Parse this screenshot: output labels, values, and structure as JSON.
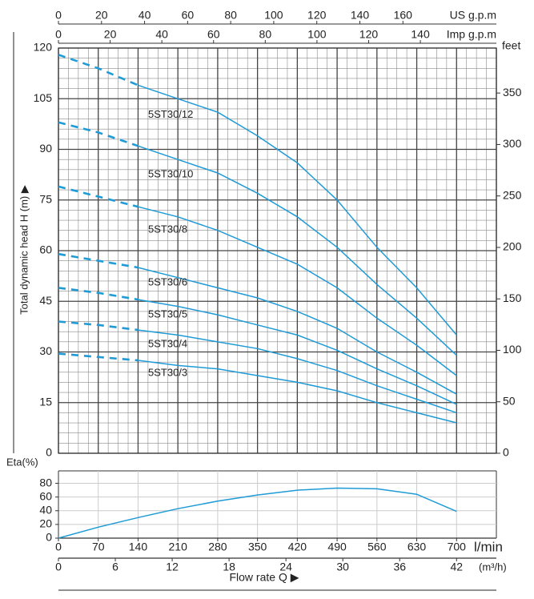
{
  "chart_data": [
    {
      "type": "line",
      "y_label": "Total dynamic head H (m) ▶",
      "x": [
        0,
        70,
        140,
        210,
        280,
        350,
        420,
        490,
        560,
        630,
        700
      ],
      "xlim": [
        0,
        770
      ],
      "ylim": [
        0,
        120
      ],
      "yticks": [
        0,
        15,
        30,
        45,
        60,
        75,
        90,
        105,
        120
      ],
      "y2_label": "feet",
      "y2lim": [
        0,
        393.7
      ],
      "y2ticks": [
        0,
        50,
        100,
        150,
        200,
        250,
        300,
        350
      ],
      "top_axes": [
        {
          "label": "US g.p.m",
          "lim": [
            0,
            203.4
          ],
          "ticks": [
            0,
            20,
            40,
            60,
            80,
            100,
            120,
            140,
            160
          ]
        },
        {
          "label": "Imp g.p.m",
          "lim": [
            0,
            169.4
          ],
          "ticks": [
            0,
            20,
            40,
            60,
            80,
            100,
            120,
            140
          ]
        }
      ],
      "dashed_below": 140,
      "grid": true,
      "series": [
        {
          "name": "5ST30/12",
          "color": "#1e9bd7",
          "values": [
            118,
            114,
            109,
            105,
            101,
            94,
            86,
            75,
            61,
            49,
            35
          ]
        },
        {
          "name": "5ST30/10",
          "color": "#1e9bd7",
          "values": [
            98,
            95,
            91,
            87,
            83,
            77,
            70,
            61,
            50,
            40,
            29
          ]
        },
        {
          "name": "5ST30/8",
          "color": "#1e9bd7",
          "values": [
            79,
            76,
            73,
            70,
            66,
            61,
            56,
            49,
            40,
            32,
            23
          ]
        },
        {
          "name": "5ST30/6",
          "color": "#1e9bd7",
          "values": [
            59,
            57,
            55,
            52,
            49,
            46,
            42,
            37,
            30,
            24,
            17.5
          ]
        },
        {
          "name": "5ST30/5",
          "color": "#1e9bd7",
          "values": [
            49,
            47.5,
            45.5,
            43.5,
            41,
            38,
            35,
            30.5,
            25,
            20,
            14.5
          ]
        },
        {
          "name": "5ST30/4",
          "color": "#1e9bd7",
          "values": [
            39,
            38,
            36.5,
            35,
            33,
            31,
            28,
            24.5,
            20,
            16,
            12
          ]
        },
        {
          "name": "5ST30/3",
          "color": "#1e9bd7",
          "values": [
            29.5,
            28.5,
            27.5,
            26,
            25,
            23,
            21,
            18.5,
            15,
            12,
            9
          ]
        }
      ]
    },
    {
      "type": "line",
      "y_label": "Eta(%)",
      "x": [
        0,
        70,
        140,
        210,
        280,
        350,
        420,
        490,
        560,
        630,
        700
      ],
      "values": [
        0,
        16,
        30,
        43,
        54,
        63,
        70,
        73,
        72,
        64,
        39
      ],
      "color": "#1e9bd7",
      "xlim": [
        0,
        770
      ],
      "ylim": [
        0,
        90
      ],
      "yticks": [
        0,
        20,
        40,
        60,
        80
      ],
      "grid": true,
      "x_axes": [
        {
          "label": "l/min",
          "lim": [
            0,
            770
          ],
          "ticks": [
            0,
            70,
            140,
            210,
            280,
            350,
            420,
            490,
            560,
            630,
            700
          ]
        },
        {
          "label": "(m³/h)",
          "lim": [
            0,
            46.2
          ],
          "ticks": [
            0,
            6,
            12,
            18,
            24,
            30,
            36,
            42
          ]
        }
      ],
      "x_label": "Flow rate Q ▶"
    }
  ]
}
